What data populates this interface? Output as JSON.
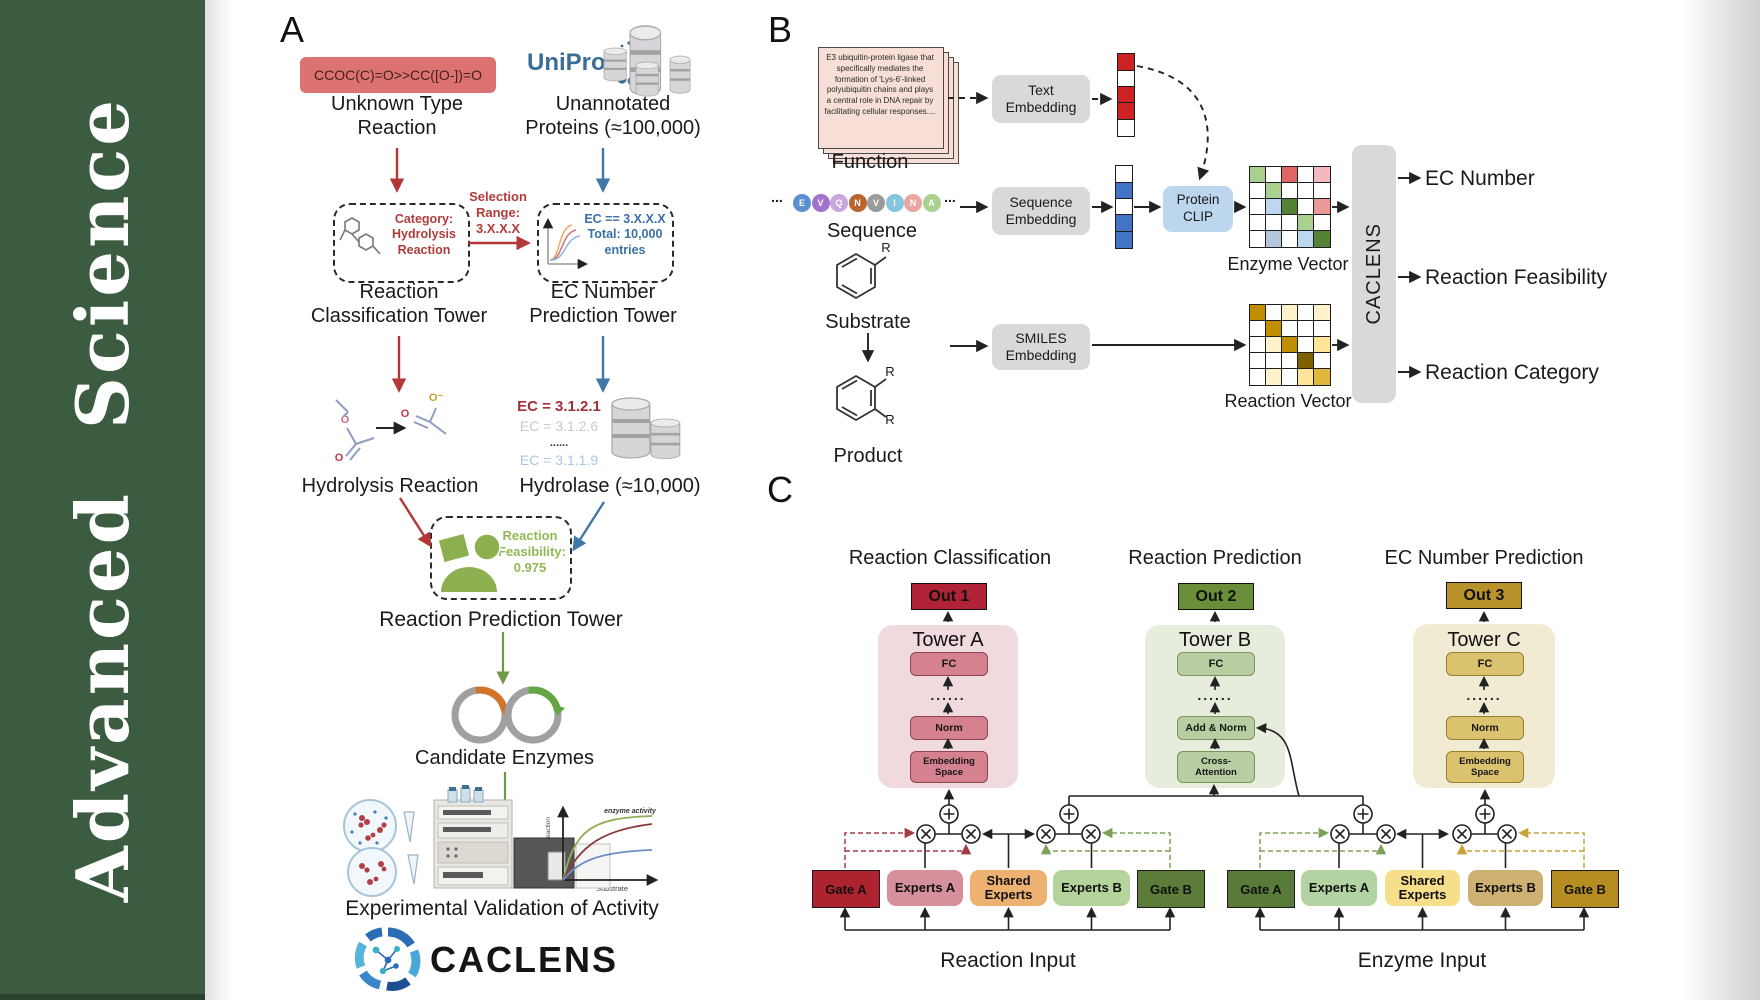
{
  "journal": {
    "name": "Advanced Science",
    "sidebar_color": "#3b5c40"
  },
  "panelA": {
    "label": "A",
    "smiles": "CCOC(C)=O>>CC([O-])=O",
    "smiles_bg": "#dd7272",
    "unknown_type": "Unknown Type\nReaction",
    "uniprot": "UniProt",
    "unannotated": "Unannotated\nProteins (≈100,000)",
    "category_box": "Category:\nHydrolysis\nReaction",
    "selection_range": "Selection\nRange:\n3.X.X.X",
    "ec_box": "EC == 3.X.X.X\nTotal: 10,000\nentries",
    "classification_tower": "Reaction\nClassification Tower",
    "ec_tower": "EC Number\nPrediction Tower",
    "hydrolysis": "Hydrolysis Reaction",
    "ec_list": [
      {
        "text": "EC = 3.1.2.1",
        "color": "#9e3039",
        "bold": true,
        "size": 15
      },
      {
        "text": "EC = 3.1.2.6",
        "color": "#c9c9c9",
        "bold": false,
        "size": 14
      },
      {
        "text": "......",
        "color": "#333333",
        "bold": true,
        "size": 11
      },
      {
        "text": "EC = 3.1.1.9",
        "color": "#a9c6e4",
        "bold": false,
        "size": 14
      }
    ],
    "hydrolase": "Hydrolase (≈10,000)",
    "atoms": {
      "o1": "O",
      "o2": "O",
      "ominus": "O⁻",
      "o3": "O"
    },
    "enzyme_icon": "Enzyme",
    "feasibility": "Reaction\nFeasibility:\n0.975",
    "prediction_tower": "Reaction Prediction Tower",
    "candidate": "Candidate Enzymes",
    "validation": "Experimental Validation of Activity",
    "activity_plot": {
      "ylabel": "Rate of reaction",
      "xlabel": "Substrate",
      "annotation": "enzyme activity"
    },
    "logo": "CACLENS"
  },
  "panelB": {
    "label": "B",
    "function_card": "E3 ubiquitin-protein ligase that specifically mediates the formation of 'Lys-6'-linked polyubiquitin chains and plays a central role in DNA repair by facilitating cellular responses....",
    "function": "Function",
    "ellipsis": "...",
    "sequence_letters": [
      {
        "ch": "E",
        "color": "#5b8fd0"
      },
      {
        "ch": "V",
        "color": "#a273cc"
      },
      {
        "ch": "Q",
        "color": "#c7a7de"
      },
      {
        "ch": "N",
        "color": "#b9662e"
      },
      {
        "ch": "V",
        "color": "#9b9b9b"
      },
      {
        "ch": "I",
        "color": "#85c5de"
      },
      {
        "ch": "N",
        "color": "#eaa69e"
      },
      {
        "ch": "A",
        "color": "#abd08f"
      }
    ],
    "sequence": "Sequence",
    "substrate": "Substrate",
    "product": "Product",
    "r": "R",
    "text_embedding": "Text\nEmbedding",
    "sequence_embedding": "Sequence\nEmbedding",
    "smiles_embedding": "SMILES\nEmbedding",
    "protein_clip": "Protein\nCLIP",
    "text_vector": [
      "#cc2222",
      "#ffffff",
      "#cc2222",
      "#cc2222",
      "#ffffff"
    ],
    "sequence_vector": [
      "#ffffff",
      "#4472c4",
      "#ffffff",
      "#4472c4",
      "#4472c4"
    ],
    "enzyme_vector": {
      "label": "Enzyme Vector",
      "grid": [
        [
          "#a9d08e",
          "#ffffff",
          "#e06666",
          "#ffffff",
          "#f4b8c0"
        ],
        [
          "#ffffff",
          "#a9d08e",
          "#ffffff",
          "#ffffff",
          "#ffffff"
        ],
        [
          "#ffffff",
          "#bdd7ee",
          "#538135",
          "#ffffff",
          "#ea9999"
        ],
        [
          "#ffffff",
          "#ffffff",
          "#ffffff",
          "#a9d08e",
          "#ffffff"
        ],
        [
          "#ffffff",
          "#b4c7dc",
          "#ffffff",
          "#bdd7ee",
          "#538135"
        ]
      ]
    },
    "reaction_vector": {
      "label": "Reaction Vector",
      "grid": [
        [
          "#bf8f00",
          "#ffffff",
          "#fff2cc",
          "#ffffff",
          "#fff2cc"
        ],
        [
          "#ffffff",
          "#bf8f00",
          "#ffffff",
          "#ffffff",
          "#ffffff"
        ],
        [
          "#ffffff",
          "#fff2cc",
          "#bf8f00",
          "#ffffff",
          "#ffe599"
        ],
        [
          "#ffffff",
          "#ffffff",
          "#ffffff",
          "#7f6000",
          "#ffffff"
        ],
        [
          "#ffffff",
          "#fff2cc",
          "#ffffff",
          "#ffe599",
          "#e0b73d"
        ]
      ]
    },
    "caclens": "CACLENS",
    "outputs": [
      "EC Number",
      "Reaction Feasibility",
      "Reaction Category"
    ]
  },
  "panelC": {
    "label": "C",
    "headings": [
      "Reaction Classification",
      "Reaction Prediction",
      "EC Number Prediction"
    ],
    "outs": [
      {
        "label": "Out 1",
        "bg": "#b02336"
      },
      {
        "label": "Out 2",
        "bg": "#6b8e3a"
      },
      {
        "label": "Out 3",
        "bg": "#b9922c"
      }
    ],
    "towers": [
      {
        "name": "Tower A",
        "bg": "#f1dade",
        "box_bg": "#d5818f",
        "box_border": "#8e4450",
        "layers": [
          "FC",
          "......",
          "Norm",
          "Embedding\nSpace"
        ]
      },
      {
        "name": "Tower B",
        "bg": "#e7eddc",
        "box_bg": "#b9cda3",
        "box_border": "#77945c",
        "layers": [
          "FC",
          "......",
          "Add & Norm",
          "Cross-\nAttention"
        ]
      },
      {
        "name": "Tower C",
        "bg": "#f2ebd3",
        "box_bg": "#dac26e",
        "box_border": "#97802b",
        "layers": [
          "FC",
          "......",
          "Norm",
          "Embedding\nSpace"
        ]
      }
    ],
    "groups": [
      {
        "input": "Reaction Input",
        "boxes": [
          {
            "label": "Gate A",
            "bg": "#ae2330"
          },
          {
            "label": "Experts A",
            "bg": "#d6909b"
          },
          {
            "label": "Shared\nExperts",
            "bg": "#edb272"
          },
          {
            "label": "Experts B",
            "bg": "#b5d49b"
          },
          {
            "label": "Gate B",
            "bg": "#5e7c39"
          }
        ]
      },
      {
        "input": "Enzyme Input",
        "boxes": [
          {
            "label": "Gate A",
            "bg": "#587a3a"
          },
          {
            "label": "Experts A",
            "bg": "#b2d3a2"
          },
          {
            "label": "Shared\nExperts",
            "bg": "#f6de8b"
          },
          {
            "label": "Experts B",
            "bg": "#cdb072"
          },
          {
            "label": "Gate B",
            "bg": "#b68d20"
          }
        ]
      }
    ]
  }
}
